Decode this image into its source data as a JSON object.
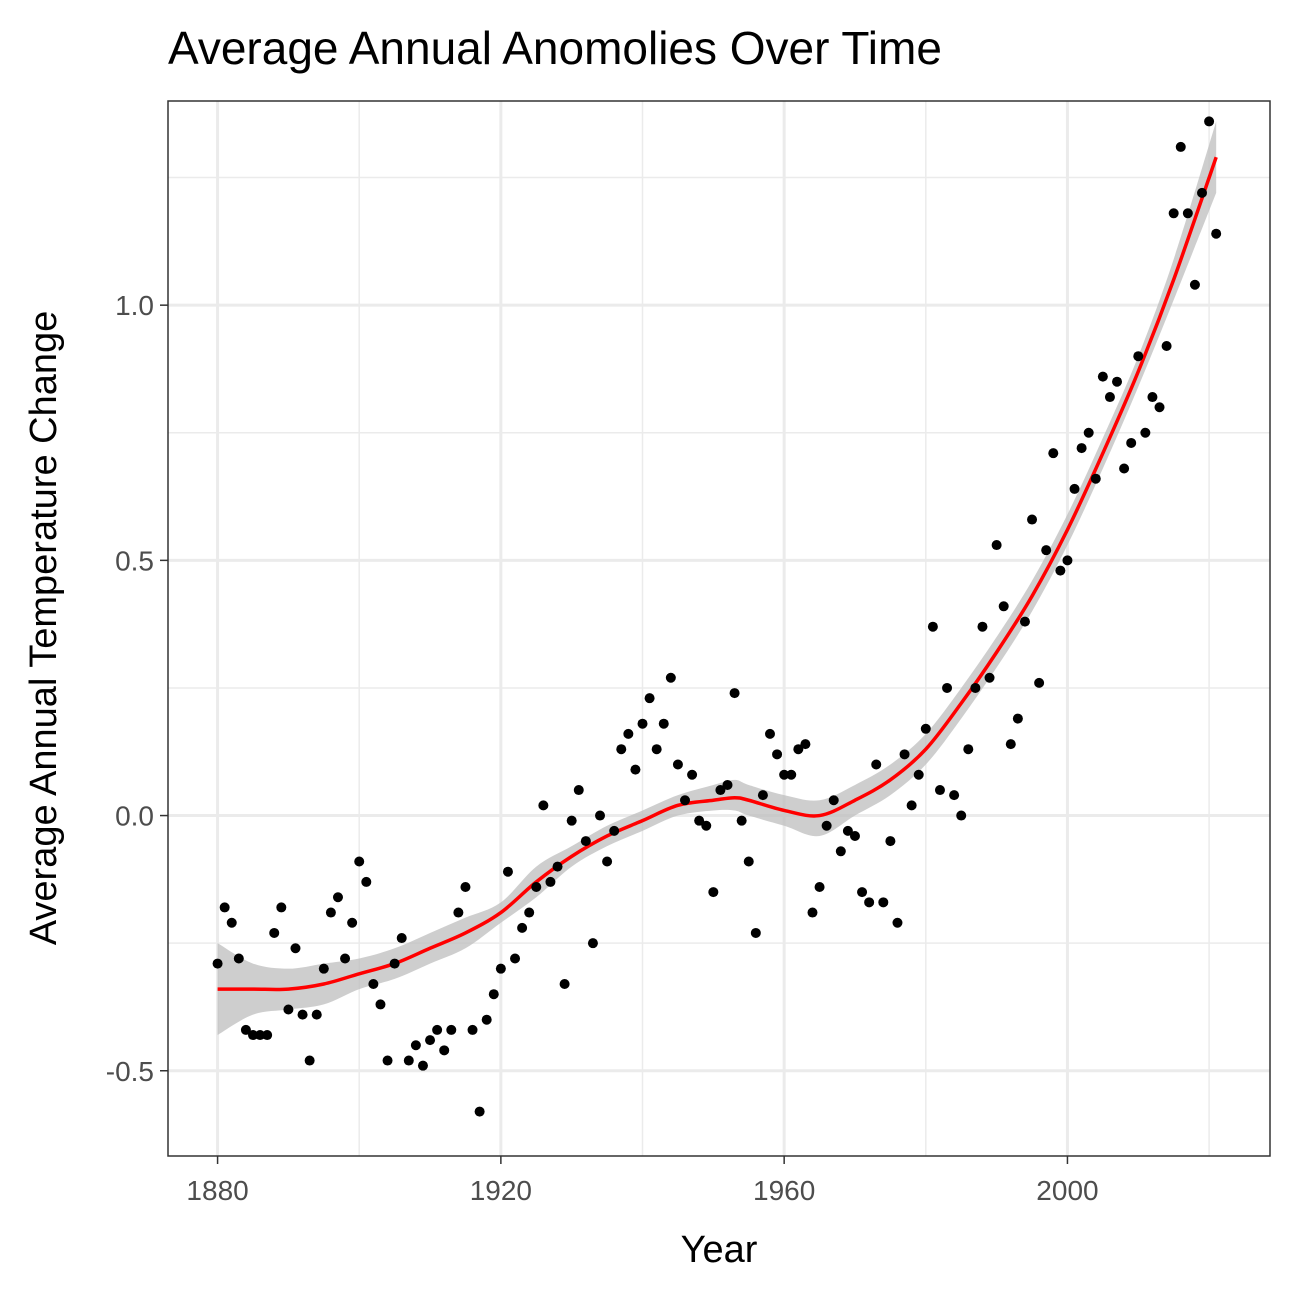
{
  "chart_data": {
    "type": "scatter",
    "title": "Average Annual Anomolies Over Time",
    "xlabel": "Year",
    "ylabel": "Average Annual Temperature Change",
    "xlim": [
      1873,
      2028.6
    ],
    "ylim": [
      -0.667,
      1.4
    ],
    "x_ticks": [
      1880,
      1920,
      1960,
      2000
    ],
    "x_tick_labels": [
      "1880",
      "1920",
      "1960",
      "2000"
    ],
    "y_ticks": [
      -0.5,
      0.0,
      0.5,
      1.0
    ],
    "y_tick_labels": [
      "-0.5",
      "0.0",
      "0.5",
      "1.0"
    ],
    "grid": true,
    "legend": "none",
    "colors": {
      "points": "#000000",
      "smooth": "#ff0000",
      "band": "#bdbdbd",
      "grid": "#ebebeb",
      "panel_border": "#333333"
    },
    "series": [
      {
        "type": "scatter",
        "points": [
          [
            1880,
            -0.29
          ],
          [
            1881,
            -0.18
          ],
          [
            1882,
            -0.21
          ],
          [
            1883,
            -0.28
          ],
          [
            1884,
            -0.42
          ],
          [
            1885,
            -0.43
          ],
          [
            1886,
            -0.43
          ],
          [
            1887,
            -0.43
          ],
          [
            1888,
            -0.23
          ],
          [
            1889,
            -0.18
          ],
          [
            1890,
            -0.38
          ],
          [
            1891,
            -0.26
          ],
          [
            1892,
            -0.39
          ],
          [
            1893,
            -0.48
          ],
          [
            1894,
            -0.39
          ],
          [
            1895,
            -0.3
          ],
          [
            1896,
            -0.19
          ],
          [
            1897,
            -0.16
          ],
          [
            1898,
            -0.28
          ],
          [
            1899,
            -0.21
          ],
          [
            1900,
            -0.09
          ],
          [
            1901,
            -0.13
          ],
          [
            1902,
            -0.33
          ],
          [
            1903,
            -0.37
          ],
          [
            1904,
            -0.48
          ],
          [
            1905,
            -0.29
          ],
          [
            1906,
            -0.24
          ],
          [
            1907,
            -0.48
          ],
          [
            1908,
            -0.45
          ],
          [
            1909,
            -0.49
          ],
          [
            1910,
            -0.44
          ],
          [
            1911,
            -0.42
          ],
          [
            1912,
            -0.46
          ],
          [
            1913,
            -0.42
          ],
          [
            1914,
            -0.19
          ],
          [
            1915,
            -0.14
          ],
          [
            1916,
            -0.42
          ],
          [
            1917,
            -0.58
          ],
          [
            1918,
            -0.4
          ],
          [
            1919,
            -0.35
          ],
          [
            1920,
            -0.3
          ],
          [
            1921,
            -0.11
          ],
          [
            1922,
            -0.28
          ],
          [
            1923,
            -0.22
          ],
          [
            1924,
            -0.19
          ],
          [
            1925,
            -0.14
          ],
          [
            1926,
            0.02
          ],
          [
            1927,
            -0.13
          ],
          [
            1928,
            -0.1
          ],
          [
            1929,
            -0.33
          ],
          [
            1930,
            -0.01
          ],
          [
            1931,
            0.05
          ],
          [
            1932,
            -0.05
          ],
          [
            1933,
            -0.25
          ],
          [
            1934,
            0.0
          ],
          [
            1935,
            -0.09
          ],
          [
            1936,
            -0.03
          ],
          [
            1937,
            0.13
          ],
          [
            1938,
            0.16
          ],
          [
            1939,
            0.09
          ],
          [
            1940,
            0.18
          ],
          [
            1941,
            0.23
          ],
          [
            1942,
            0.13
          ],
          [
            1943,
            0.18
          ],
          [
            1944,
            0.27
          ],
          [
            1945,
            0.1
          ],
          [
            1946,
            0.03
          ],
          [
            1947,
            0.08
          ],
          [
            1948,
            -0.01
          ],
          [
            1949,
            -0.02
          ],
          [
            1950,
            -0.15
          ],
          [
            1951,
            0.05
          ],
          [
            1952,
            0.06
          ],
          [
            1953,
            0.24
          ],
          [
            1954,
            -0.01
          ],
          [
            1955,
            -0.09
          ],
          [
            1956,
            -0.23
          ],
          [
            1957,
            0.04
          ],
          [
            1958,
            0.16
          ],
          [
            1959,
            0.12
          ],
          [
            1960,
            0.08
          ],
          [
            1961,
            0.08
          ],
          [
            1962,
            0.13
          ],
          [
            1963,
            0.14
          ],
          [
            1964,
            -0.19
          ],
          [
            1965,
            -0.14
          ],
          [
            1966,
            -0.02
          ],
          [
            1967,
            0.03
          ],
          [
            1968,
            -0.07
          ],
          [
            1969,
            -0.03
          ],
          [
            1970,
            -0.04
          ],
          [
            1971,
            -0.15
          ],
          [
            1972,
            -0.17
          ],
          [
            1973,
            0.1
          ],
          [
            1974,
            -0.17
          ],
          [
            1975,
            -0.05
          ],
          [
            1976,
            -0.21
          ],
          [
            1977,
            0.12
          ],
          [
            1978,
            0.02
          ],
          [
            1979,
            0.08
          ],
          [
            1980,
            0.17
          ],
          [
            1981,
            0.37
          ],
          [
            1982,
            0.05
          ],
          [
            1983,
            0.25
          ],
          [
            1984,
            0.04
          ],
          [
            1985,
            0.0
          ],
          [
            1986,
            0.13
          ],
          [
            1987,
            0.25
          ],
          [
            1988,
            0.37
          ],
          [
            1989,
            0.27
          ],
          [
            1990,
            0.53
          ],
          [
            1991,
            0.41
          ],
          [
            1992,
            0.14
          ],
          [
            1993,
            0.19
          ],
          [
            1994,
            0.38
          ],
          [
            1995,
            0.58
          ],
          [
            1996,
            0.26
          ],
          [
            1997,
            0.52
          ],
          [
            1998,
            0.71
          ],
          [
            1999,
            0.48
          ],
          [
            2000,
            0.5
          ],
          [
            2001,
            0.64
          ],
          [
            2002,
            0.72
          ],
          [
            2003,
            0.75
          ],
          [
            2004,
            0.66
          ],
          [
            2005,
            0.86
          ],
          [
            2006,
            0.82
          ],
          [
            2007,
            0.85
          ],
          [
            2008,
            0.68
          ],
          [
            2009,
            0.73
          ],
          [
            2010,
            0.9
          ],
          [
            2011,
            0.75
          ],
          [
            2012,
            0.82
          ],
          [
            2013,
            0.8
          ],
          [
            2014,
            0.92
          ],
          [
            2015,
            1.18
          ],
          [
            2016,
            1.31
          ],
          [
            2017,
            1.18
          ],
          [
            2018,
            1.04
          ],
          [
            2019,
            1.22
          ],
          [
            2020,
            1.36
          ],
          [
            2021,
            1.14
          ]
        ]
      },
      {
        "type": "line",
        "smooth": true,
        "x": [
          1880,
          1885,
          1890,
          1895,
          1900,
          1905,
          1910,
          1915,
          1920,
          1925,
          1930,
          1935,
          1940,
          1945,
          1950,
          1953,
          1955,
          1960,
          1965,
          1970,
          1975,
          1980,
          1985,
          1990,
          1995,
          2000,
          2005,
          2010,
          2015,
          2021
        ],
        "y": [
          -0.34,
          -0.34,
          -0.34,
          -0.33,
          -0.31,
          -0.29,
          -0.26,
          -0.23,
          -0.19,
          -0.13,
          -0.08,
          -0.04,
          -0.01,
          0.02,
          0.03,
          0.035,
          0.03,
          0.01,
          0.0,
          0.03,
          0.07,
          0.13,
          0.22,
          0.32,
          0.43,
          0.56,
          0.71,
          0.87,
          1.05,
          1.29
        ],
        "lower": [
          -0.43,
          -0.39,
          -0.38,
          -0.37,
          -0.34,
          -0.32,
          -0.29,
          -0.26,
          -0.21,
          -0.16,
          -0.1,
          -0.06,
          -0.03,
          0.0,
          0.01,
          0.01,
          0.0,
          -0.02,
          -0.04,
          0.0,
          0.04,
          0.1,
          0.19,
          0.29,
          0.4,
          0.53,
          0.68,
          0.84,
          1.01,
          1.22
        ],
        "upper": [
          -0.25,
          -0.29,
          -0.3,
          -0.29,
          -0.28,
          -0.26,
          -0.23,
          -0.2,
          -0.17,
          -0.1,
          -0.06,
          -0.02,
          0.01,
          0.04,
          0.06,
          0.07,
          0.06,
          0.04,
          0.03,
          0.06,
          0.1,
          0.16,
          0.25,
          0.35,
          0.46,
          0.59,
          0.74,
          0.9,
          1.09,
          1.36
        ]
      }
    ]
  }
}
